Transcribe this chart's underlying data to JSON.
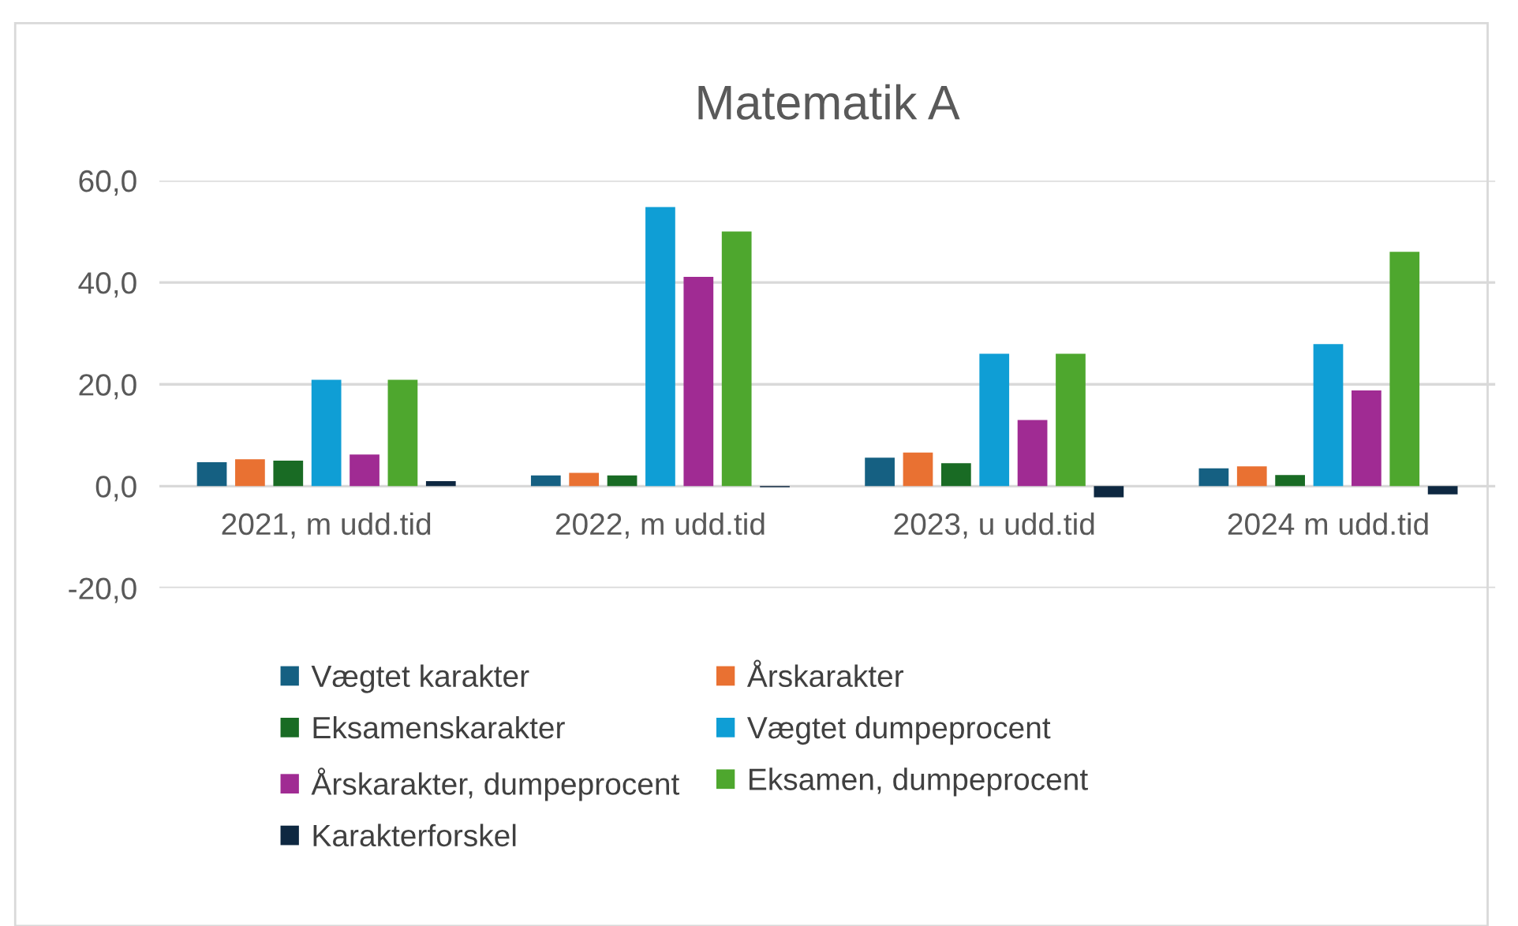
{
  "chart_data": {
    "type": "bar",
    "title": "Matematik A",
    "categories": [
      "2021, m udd.tid",
      "2022, m udd.tid",
      "2023, u udd.tid",
      "2024 m udd.tid"
    ],
    "series": [
      {
        "name": "Vægtet karakter",
        "color": "#156082",
        "values": [
          4.7,
          2.1,
          5.6,
          3.5
        ]
      },
      {
        "name": "Årskarakter",
        "color": "#e97132",
        "values": [
          5.3,
          2.6,
          6.6,
          3.9
        ]
      },
      {
        "name": "Eksamenskarakter",
        "color": "#196b24",
        "values": [
          5.0,
          2.1,
          4.5,
          2.2
        ]
      },
      {
        "name": "Vægtet dumpeprocent",
        "color": "#0f9ed5",
        "values": [
          20.9,
          54.8,
          26.0,
          27.9
        ]
      },
      {
        "name": "Årskarakter, dumpeprocent",
        "color": "#a02b93",
        "values": [
          6.2,
          41.1,
          13.0,
          18.8
        ]
      },
      {
        "name": "Eksamen, dumpeprocent",
        "color": "#4ea72e",
        "values": [
          20.9,
          50.0,
          26.0,
          46.0
        ]
      },
      {
        "name": "Karakterforskel",
        "color": "#0e2841",
        "values": [
          1.0,
          -0.2,
          -2.2,
          -1.6
        ]
      }
    ],
    "ylim": [
      -20,
      60
    ],
    "yticks": [
      {
        "value": -20,
        "label": "-20,0"
      },
      {
        "value": 0,
        "label": "0,0"
      },
      {
        "value": 20,
        "label": "20,0"
      },
      {
        "value": 40,
        "label": "40,0"
      },
      {
        "value": 60,
        "label": "60,0"
      }
    ],
    "grid": "y",
    "legend": "bottom"
  }
}
